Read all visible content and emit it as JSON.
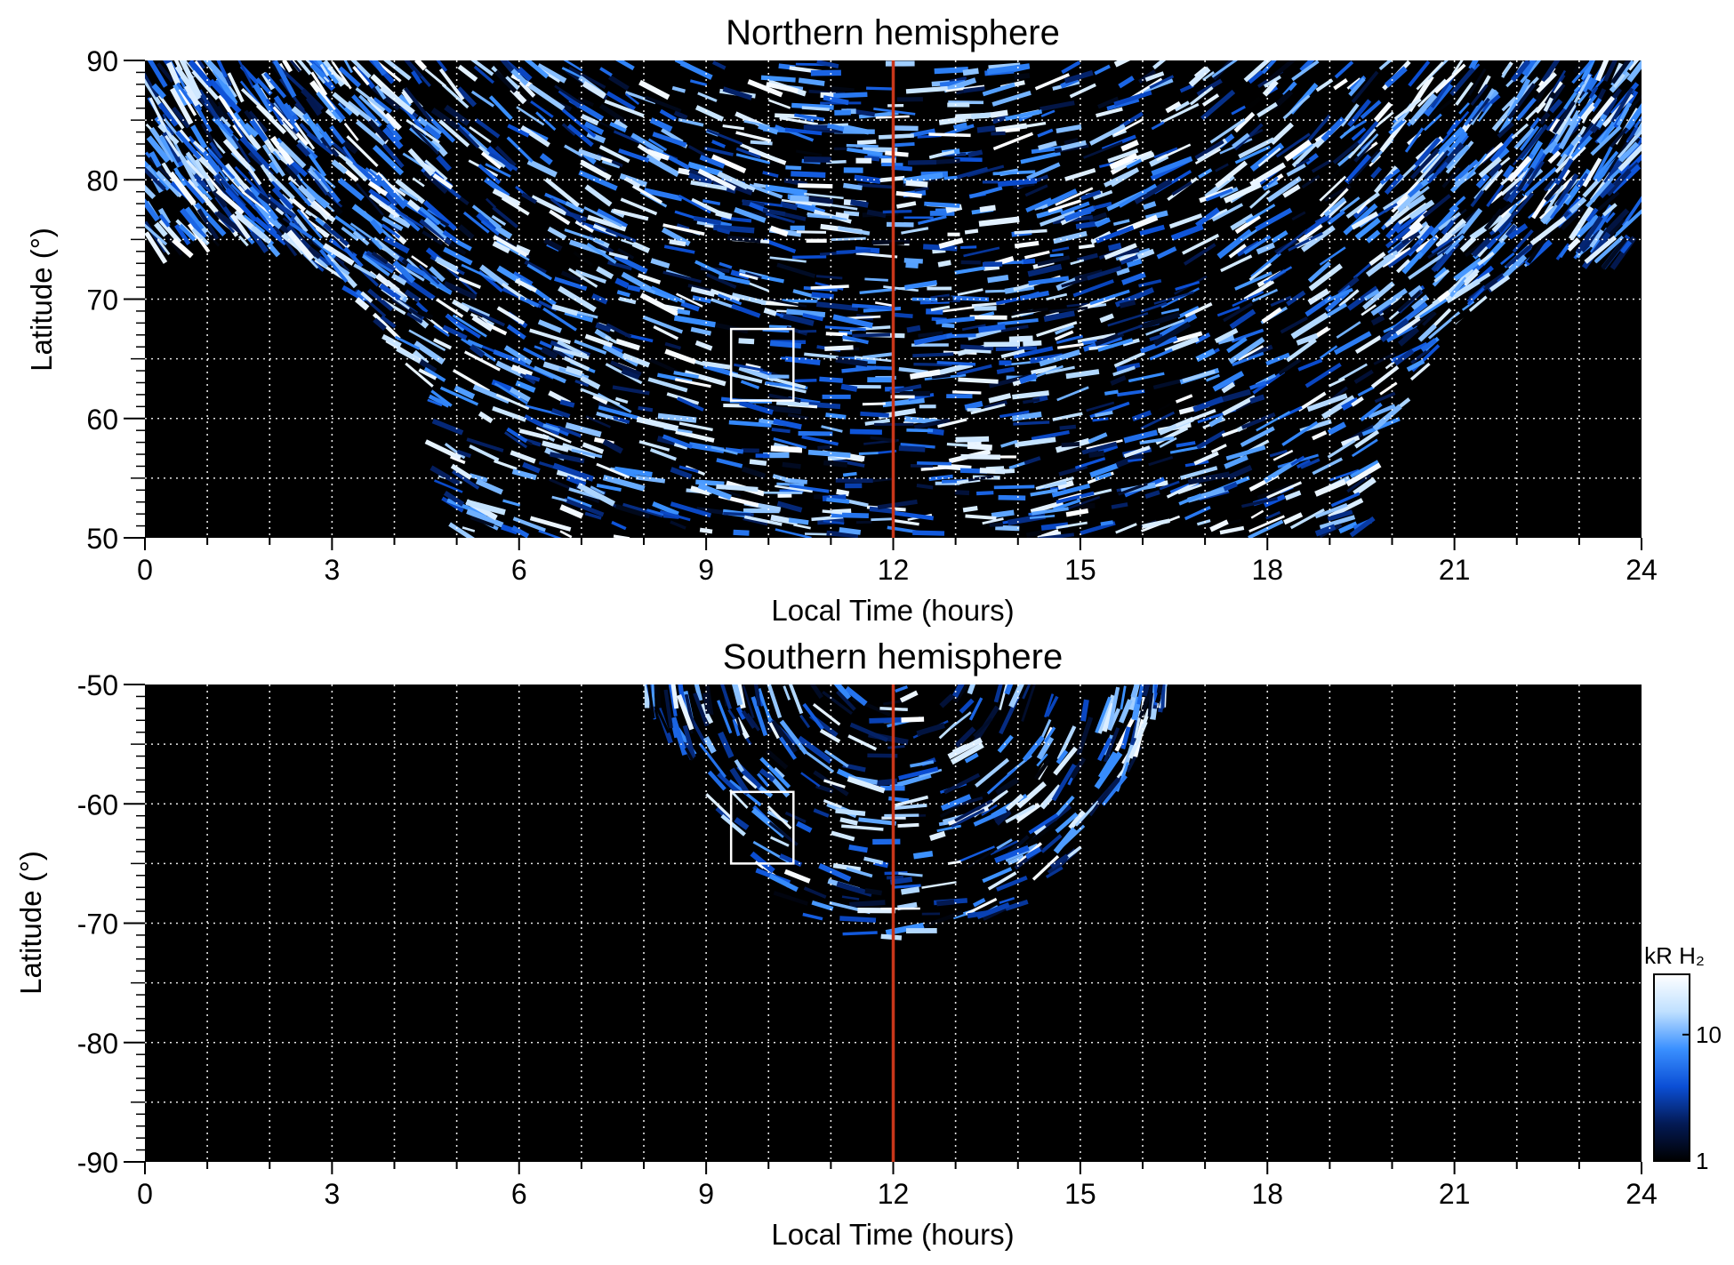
{
  "chart_data": [
    {
      "type": "heatmap",
      "title": "Northern hemisphere",
      "xlabel": "Local Time (hours)",
      "ylabel": "Latitude (°)",
      "xlim": [
        0,
        24
      ],
      "ylim": [
        50,
        90
      ],
      "xticks": [
        "0",
        "3",
        "6",
        "9",
        "12",
        "15",
        "18",
        "21",
        "24"
      ],
      "yticks": [
        "50",
        "60",
        "70",
        "80",
        "90"
      ],
      "grid": true,
      "reference_line_x": 12,
      "box": {
        "x": [
          9.4,
          10.4
        ],
        "y": [
          61.5,
          67.5
        ]
      },
      "coverage_boundary": {
        "lt": [
          0,
          1.5,
          3,
          4.5,
          5,
          6,
          8,
          10,
          12,
          14,
          16,
          18,
          19.5,
          20,
          21,
          22.5,
          24
        ],
        "lat": [
          73.5,
          75,
          72,
          63,
          50,
          50,
          50,
          50,
          50,
          50,
          50,
          50,
          50,
          60,
          68,
          74,
          73.5
        ]
      }
    },
    {
      "type": "heatmap",
      "title": "Southern hemisphere",
      "xlabel": "Local Time (hours)",
      "ylabel": "Latitude (°)",
      "xlim": [
        0,
        24
      ],
      "ylim": [
        -90,
        -50
      ],
      "xticks": [
        "0",
        "3",
        "6",
        "9",
        "12",
        "15",
        "18",
        "21",
        "24"
      ],
      "yticks": [
        "-90",
        "-80",
        "-70",
        "-60",
        "-50"
      ],
      "grid": true,
      "reference_line_x": 12,
      "box": {
        "x": [
          9.4,
          10.4
        ],
        "y": [
          -65,
          -59
        ]
      },
      "coverage_boundary": {
        "lt": [
          8,
          8.6,
          9.4,
          10.3,
          11,
          12,
          13,
          14,
          15,
          15.8,
          16.4
        ],
        "lat": [
          -50,
          -57,
          -64,
          -68,
          -70.5,
          -72,
          -71,
          -68.5,
          -64,
          -57,
          -50
        ]
      }
    }
  ],
  "colorbar": {
    "label": "kR H₂",
    "ticks": [
      "1",
      "10"
    ],
    "scale": "log",
    "range": [
      1,
      30
    ],
    "colors": [
      "#000000",
      "#031a55",
      "#0b4fd6",
      "#3a90ff",
      "#bfe0ff",
      "#ffffff"
    ]
  },
  "colors": {
    "reference_line": "#c8361a",
    "box": "#ffffff",
    "grid": "#ffffff",
    "background": "#000000"
  }
}
